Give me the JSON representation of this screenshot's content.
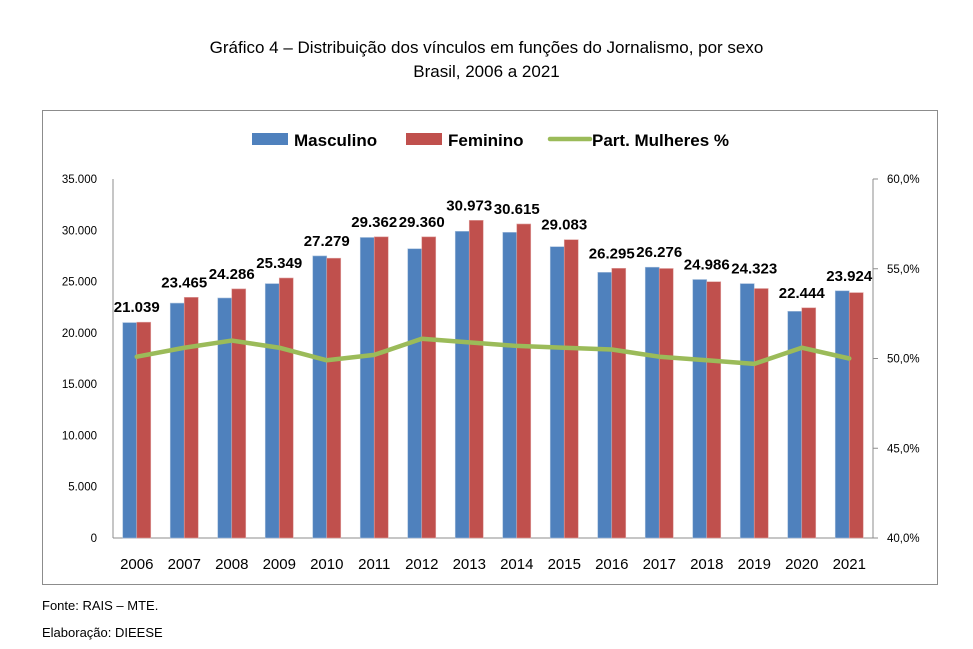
{
  "chart_data": {
    "type": "bar",
    "title": "Gráfico 4 – Distribuição dos vínculos em funções do Jornalismo, por sexo",
    "subtitle": "Brasil, 2006 a 2021",
    "categories": [
      "2006",
      "2007",
      "2008",
      "2009",
      "2010",
      "2011",
      "2012",
      "2013",
      "2014",
      "2015",
      "2016",
      "2017",
      "2018",
      "2019",
      "2020",
      "2021"
    ],
    "series": [
      {
        "name": "Masculino",
        "type": "bar",
        "axis": "left",
        "color": "#4f81bd",
        "values": [
          21000,
          22900,
          23400,
          24800,
          27500,
          29300,
          28200,
          29900,
          29800,
          28400,
          25900,
          26400,
          25200,
          24800,
          22100,
          24100
        ]
      },
      {
        "name": "Feminino",
        "type": "bar",
        "axis": "left",
        "color": "#c0504d",
        "values": [
          21039,
          23465,
          24286,
          25349,
          27279,
          29362,
          29360,
          30973,
          30615,
          29083,
          26295,
          26276,
          24986,
          24323,
          22444,
          23924
        ],
        "data_labels": [
          "21.039",
          "23.465",
          "24.286",
          "25.349",
          "27.279",
          "29.362",
          "29.360",
          "30.973",
          "30.615",
          "29.083",
          "26.295",
          "26.276",
          "24.986",
          "24.323",
          "22.444",
          "23.924"
        ]
      },
      {
        "name": "Part. Mulheres %",
        "type": "line",
        "axis": "right",
        "color": "#9bbb59",
        "values": [
          50.1,
          50.6,
          51.0,
          50.6,
          49.9,
          50.2,
          51.1,
          50.9,
          50.7,
          50.6,
          50.5,
          50.1,
          49.9,
          49.7,
          50.6,
          50.0
        ]
      }
    ],
    "ylim": [
      0,
      35000
    ],
    "y_ticks": [
      "0",
      "5.000",
      "10.000",
      "15.000",
      "20.000",
      "25.000",
      "30.000",
      "35.000"
    ],
    "y2lim": [
      40,
      60
    ],
    "y2_ticks": [
      "40,0%",
      "45,0%",
      "50,0%",
      "55,0%",
      "60,0%"
    ],
    "legend": {
      "position": "top",
      "labels": [
        "Masculino",
        "Feminino",
        "Part. Mulheres %"
      ]
    },
    "grid": false,
    "xlabel": "",
    "ylabel": ""
  },
  "footer": {
    "source": "Fonte: RAIS – MTE.",
    "credit": "Elaboração: DIEESE"
  }
}
